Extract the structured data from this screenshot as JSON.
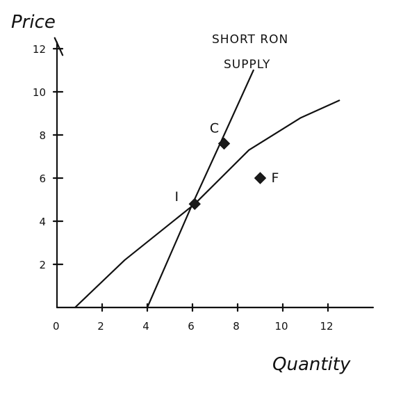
{
  "chart_data": {
    "type": "line",
    "title": "",
    "xlabel": "Quantity",
    "ylabel": "Price",
    "xlim": [
      0,
      14
    ],
    "ylim": [
      0,
      12
    ],
    "x_ticks": [
      "0",
      "2",
      "4",
      "6",
      "8",
      "10",
      "12"
    ],
    "y_ticks": [
      "2",
      "4",
      "6",
      "8",
      "10",
      "12"
    ],
    "grid": false,
    "legend": "none",
    "series": [
      {
        "name": "SHORT RON SUPPLY",
        "points": [
          [
            4,
            0
          ],
          [
            6,
            4.8
          ],
          [
            7.4,
            8
          ],
          [
            8.7,
            11
          ]
        ]
      },
      {
        "name": "",
        "points": [
          [
            0.8,
            0
          ],
          [
            3,
            2.2
          ],
          [
            6.1,
            4.8
          ],
          [
            8.5,
            7.3
          ],
          [
            10.8,
            8.8
          ],
          [
            12.5,
            9.6
          ]
        ]
      }
    ],
    "markers": [
      {
        "label": "C",
        "x": 7.4,
        "y": 7.6
      },
      {
        "label": "I",
        "x": 6.1,
        "y": 4.8
      },
      {
        "label": "F",
        "x": 9,
        "y": 6
      }
    ]
  }
}
